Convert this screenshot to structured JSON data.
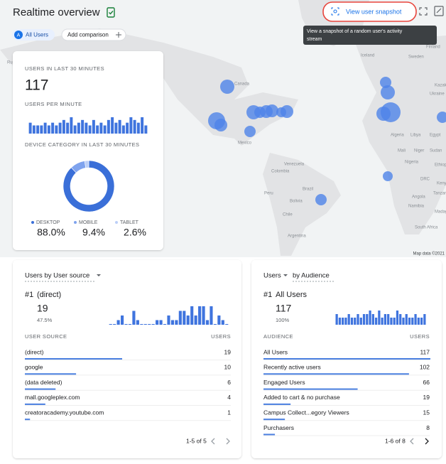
{
  "header": {
    "title": "Realtime overview",
    "snapshot_link": "View user snapshot",
    "tooltip": [
      "View a snapshot of a random user's activity",
      "stream"
    ]
  },
  "comparisons": {
    "current_badge": "A",
    "current": "All Users",
    "add": "Add comparison"
  },
  "map": {
    "credit": "Map data ©2021",
    "labels": [
      "Canada",
      "Mexico",
      "Venezuela",
      "Colombia",
      "Peru",
      "Brazil",
      "Bolivia",
      "Chile",
      "Argentina",
      "Iceland",
      "Sweden",
      "Finland",
      "Norway",
      "Ukraine",
      "Kazakhstan",
      "Algeria",
      "Libya",
      "Egypt",
      "Mali",
      "Niger",
      "Sudan",
      "Nigeria",
      "Ethiopia",
      "DRC",
      "Kenya",
      "Angola",
      "Tanzania",
      "Namibia",
      "South Africa",
      "Madagascar"
    ]
  },
  "users_card": {
    "label": "USERS IN LAST 30 MINUTES",
    "count": 117,
    "per_minute_label": "USERS PER MINUTE",
    "per_minute": [
      4,
      3,
      3,
      3,
      4,
      3,
      4,
      3,
      4,
      5,
      4,
      6,
      3,
      4,
      5,
      4,
      3,
      5,
      3,
      4,
      3,
      5,
      6,
      4,
      5,
      3,
      4,
      6,
      5,
      4,
      6,
      3
    ],
    "device_label": "DEVICE CATEGORY IN LAST 30 MINUTES",
    "devices": [
      {
        "name": "DESKTOP",
        "value": 88.0,
        "label": "88.0%"
      },
      {
        "name": "MOBILE",
        "value": 9.4,
        "label": "9.4%"
      },
      {
        "name": "TABLET",
        "value": 2.6,
        "label": "2.6%"
      }
    ]
  },
  "source_card": {
    "title": "Users by User source",
    "top": {
      "rank": "#1",
      "name": "(direct)",
      "count": 19,
      "share": "47.5%"
    },
    "sparkline": [
      0,
      0,
      1,
      2,
      0,
      0,
      3,
      1,
      0,
      0,
      0,
      0,
      1,
      1,
      0,
      2,
      1,
      1,
      3,
      3,
      2,
      4,
      2,
      4,
      4,
      1,
      4,
      0,
      2,
      1,
      0
    ],
    "headers": [
      "USER SOURCE",
      "USERS"
    ],
    "rows": [
      {
        "name": "(direct)",
        "users": 19
      },
      {
        "name": "google",
        "users": 10
      },
      {
        "name": "(data deleted)",
        "users": 6
      },
      {
        "name": "mall.googleplex.com",
        "users": 4
      },
      {
        "name": "creatoracademy.youtube.com",
        "users": 1
      }
    ],
    "pagination": "1-5 of 5"
  },
  "audience_card": {
    "title_metric": "Users",
    "title_dim": "by Audience",
    "top": {
      "rank": "#1",
      "name": "All Users",
      "count": 117,
      "share": "100%"
    },
    "sparkline": [
      3,
      2,
      2,
      2,
      3,
      2,
      2,
      3,
      2,
      3,
      3,
      4,
      3,
      2,
      4,
      2,
      3,
      3,
      2,
      2,
      4,
      3,
      2,
      3,
      2,
      2,
      3,
      2,
      2,
      3
    ],
    "headers": [
      "AUDIENCE",
      "USERS"
    ],
    "rows": [
      {
        "name": "All Users",
        "users": 117
      },
      {
        "name": "Recently active users",
        "users": 102
      },
      {
        "name": "Engaged Users",
        "users": 66
      },
      {
        "name": "Added to cart & no purchase",
        "users": 19
      },
      {
        "name": "Campus Collect...egory Viewers",
        "users": 15
      },
      {
        "name": "Purchasers",
        "users": 8
      }
    ],
    "pagination": "1-6 of 8"
  }
}
